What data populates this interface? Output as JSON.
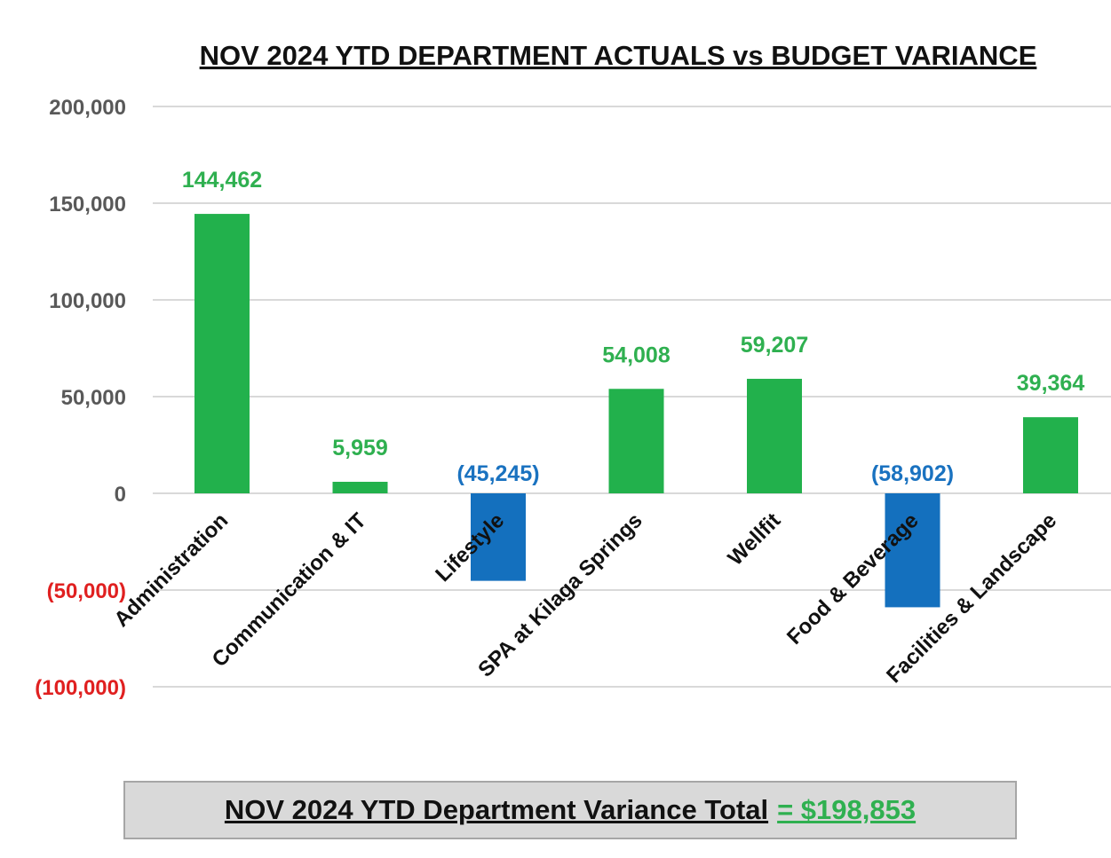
{
  "colors": {
    "positive": "#22b14c",
    "negative": "#1470be",
    "positive_label": "#2fb050",
    "negative_label": "#1a72c0",
    "tick_positive": "#595959",
    "tick_negative": "#e02020",
    "grid": "#d9d9d9"
  },
  "chart_data": {
    "type": "bar",
    "title": "NOV 2024 YTD DEPARTMENT ACTUALS vs BUDGET VARIANCE",
    "categories": [
      "Administration",
      "Communication & IT",
      "Lifestyle",
      "SPA at Kilaga Springs",
      "Wellfit",
      "Food & Beverage",
      "Facilities & Landscape"
    ],
    "values": [
      144462,
      5959,
      -45245,
      54008,
      59207,
      -58902,
      39364
    ],
    "data_labels": [
      "144,462",
      "5,959",
      "(45,245)",
      "54,008",
      "59,207",
      "(58,902)",
      "39,364"
    ],
    "ylim": [
      -100000,
      200000
    ],
    "yticks": [
      200000,
      150000,
      100000,
      50000,
      0,
      -50000,
      -100000
    ],
    "ytick_labels": [
      "200,000",
      "150,000",
      "100,000",
      "50,000",
      "0",
      "(50,000)",
      "(100,000)"
    ],
    "grid": true,
    "legend": "none"
  },
  "total": {
    "label": "NOV 2024 YTD Department Variance Total",
    "value": " = $198,853"
  }
}
